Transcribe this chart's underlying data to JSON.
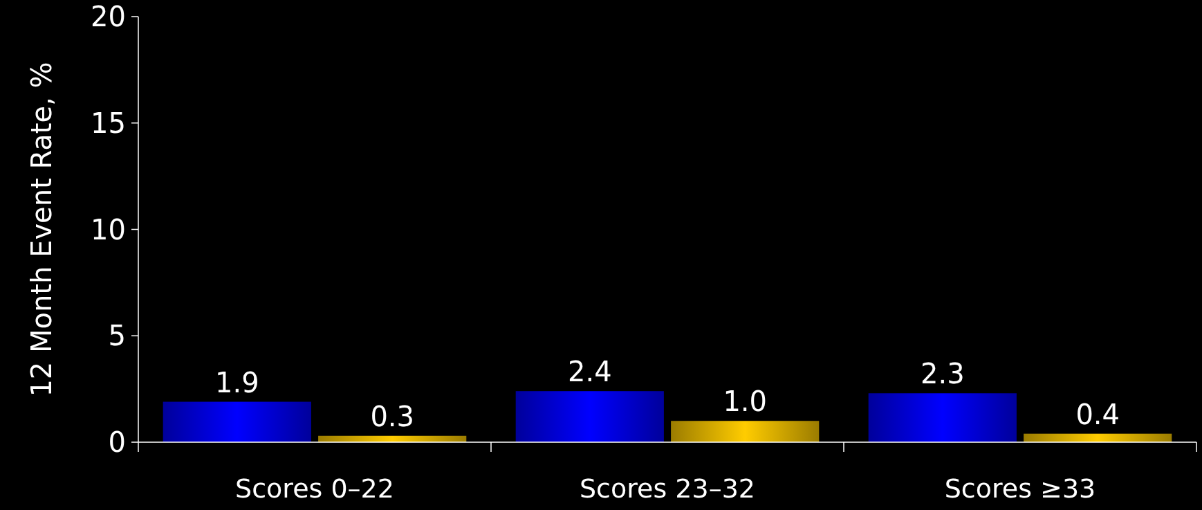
{
  "chart_data": {
    "type": "bar",
    "ylabel": "12 Month Event Rate, %",
    "categories": [
      "Scores 0–22",
      "Scores 23–32",
      "Scores ≥33"
    ],
    "series": [
      {
        "color": "#0000ff",
        "values": [
          1.9,
          2.4,
          2.3
        ],
        "value_labels": [
          "1.9",
          "2.4",
          "2.3"
        ]
      },
      {
        "color": "#ffcc00",
        "values": [
          0.3,
          1.0,
          0.4
        ],
        "value_labels": [
          "0.3",
          "1.0",
          "0.4"
        ]
      }
    ],
    "ylim": [
      0,
      20
    ],
    "yticks": [
      0,
      5,
      10,
      15,
      20
    ],
    "grid": false
  }
}
